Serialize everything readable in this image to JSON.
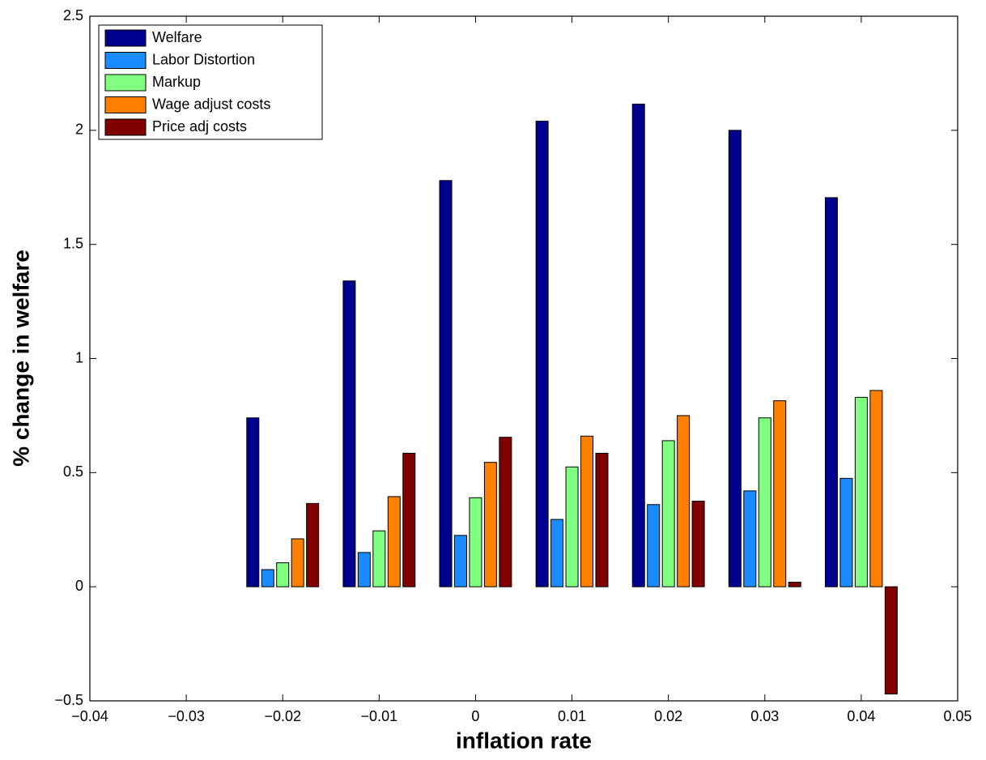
{
  "chart_data": {
    "type": "bar",
    "x_label": "inflation rate",
    "y_label": "% change in welfare",
    "x": [
      -0.03,
      -0.02,
      -0.01,
      0,
      0.01,
      0.02,
      0.03,
      0.04
    ],
    "series": [
      {
        "name": "Welfare",
        "color": "#00008f",
        "values": [
          0,
          0.74,
          1.34,
          1.78,
          2.04,
          2.115,
          2.0,
          1.705
        ]
      },
      {
        "name": "Labor Distortion",
        "color": "#1a8cff",
        "values": [
          0,
          0.075,
          0.15,
          0.225,
          0.295,
          0.36,
          0.42,
          0.475
        ]
      },
      {
        "name": "Markup",
        "color": "#80ff80",
        "values": [
          0,
          0.105,
          0.245,
          0.39,
          0.525,
          0.64,
          0.74,
          0.83
        ]
      },
      {
        "name": "Wage adjust costs",
        "color": "#ff8000",
        "values": [
          0,
          0.21,
          0.395,
          0.545,
          0.66,
          0.75,
          0.815,
          0.86
        ]
      },
      {
        "name": "Price adj costs",
        "color": "#800000",
        "values": [
          0,
          0.365,
          0.585,
          0.655,
          0.585,
          0.375,
          0.02,
          -0.47
        ]
      }
    ],
    "xlim": [
      -0.04,
      0.05
    ],
    "xticks": [
      {
        "value": -0.04,
        "label": "−0.04"
      },
      {
        "value": -0.03,
        "label": "−0.03"
      },
      {
        "value": -0.02,
        "label": "−0.02"
      },
      {
        "value": -0.01,
        "label": "−0.01"
      },
      0,
      0.01,
      0.02,
      0.03,
      0.04,
      0.05
    ],
    "ylim": [
      -0.5,
      2.5
    ],
    "yticks": [
      {
        "value": -0.5,
        "label": "−0.5"
      },
      0,
      0.5,
      1,
      1.5,
      2,
      2.5
    ],
    "legend": "upper-left",
    "grid": false
  }
}
